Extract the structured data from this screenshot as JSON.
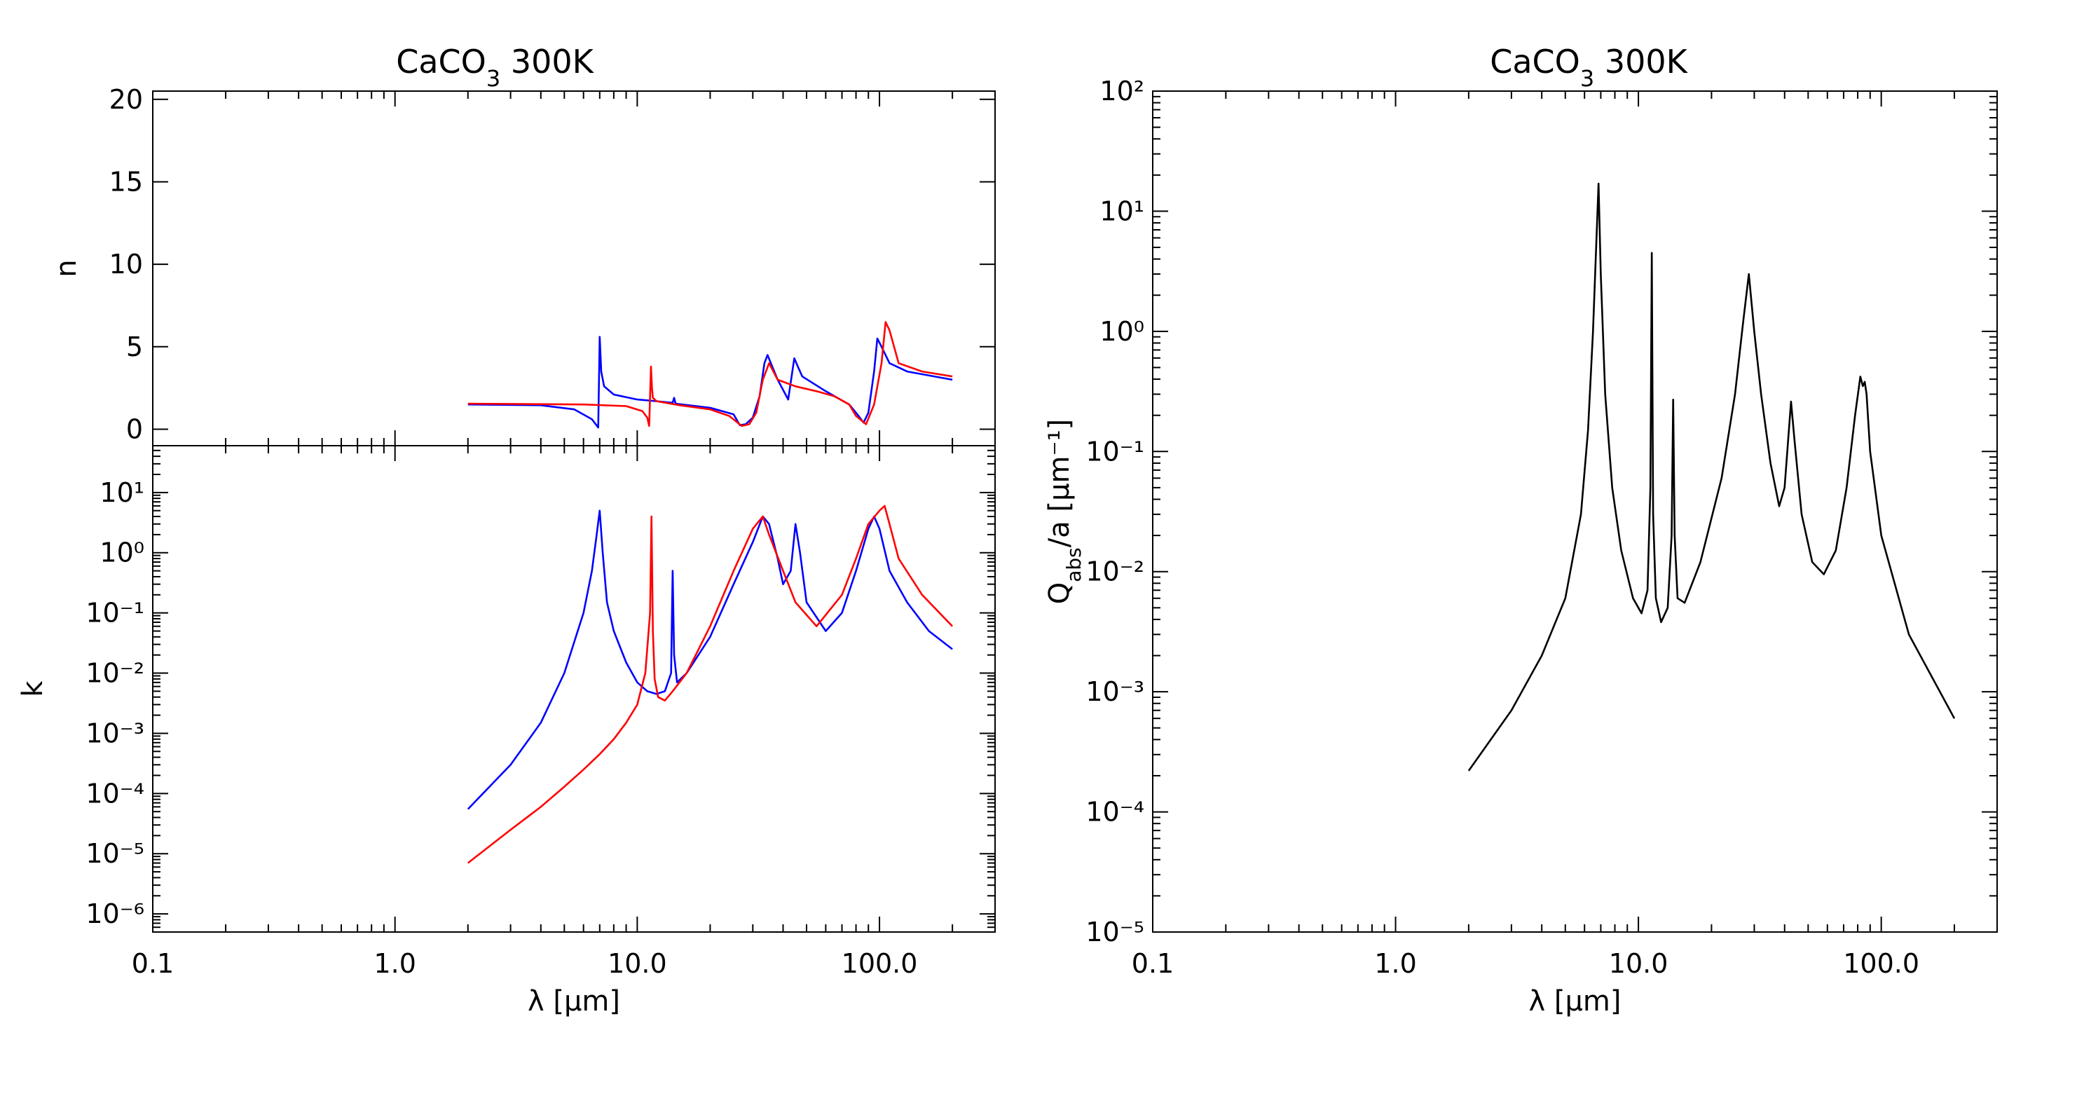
{
  "figure": {
    "left_title": "CaCO",
    "left_title_sub": "3",
    "left_title_rest": " 300K",
    "right_title": "CaCO",
    "right_title_sub": "3",
    "right_title_rest": " 300K"
  },
  "colors": {
    "series_a": "#0000ff",
    "series_b": "#ff0000",
    "series_c": "#000000",
    "axes": "#000000"
  },
  "chart_data": [
    {
      "type": "line",
      "title": "CaCO3 300K",
      "xlabel": "",
      "ylabel": "n",
      "xscale": "log",
      "xlim": [
        0.1,
        300
      ],
      "ylim": [
        -1,
        20.5
      ],
      "xtick_labels": [],
      "ytick_values": [
        0,
        5,
        10,
        15,
        20
      ],
      "ytick_labels": [
        "0",
        "5",
        "10",
        "15",
        "20"
      ],
      "series": [
        {
          "color": "#0000ff",
          "x": [
            2.0,
            4.0,
            5.5,
            6.5,
            6.9,
            7.0,
            7.1,
            7.3,
            8.0,
            10.0,
            11.0,
            12.0,
            14.0,
            14.2,
            14.4,
            20.0,
            25.0,
            26.5,
            28.0,
            30.0,
            32.0,
            33.5,
            34.5,
            38.0,
            42.0,
            44.5,
            46.0,
            48.0,
            60.0,
            75.0,
            82.0,
            86.0,
            90.0,
            95.0,
            98.0,
            102.0,
            110.0,
            130.0,
            200.0
          ],
          "y": [
            1.5,
            1.45,
            1.2,
            0.6,
            0.1,
            5.6,
            3.5,
            2.6,
            2.1,
            1.8,
            1.75,
            1.7,
            1.6,
            1.9,
            1.55,
            1.3,
            0.9,
            0.25,
            0.3,
            0.7,
            2.0,
            4.0,
            4.5,
            3.0,
            1.8,
            4.3,
            3.8,
            3.2,
            2.3,
            1.5,
            0.8,
            0.4,
            1.0,
            3.5,
            5.5,
            5.0,
            4.0,
            3.5,
            3.0
          ]
        },
        {
          "color": "#ff0000",
          "x": [
            2.0,
            6.0,
            9.0,
            10.5,
            11.0,
            11.2,
            11.4,
            11.5,
            11.6,
            12.0,
            15.0,
            20.0,
            24.0,
            27.0,
            29.0,
            31.0,
            33.0,
            35.0,
            38.0,
            45.0,
            55.0,
            65.0,
            75.0,
            80.0,
            88.0,
            95.0,
            102.0,
            106.0,
            110.0,
            120.0,
            150.0,
            200.0
          ],
          "y": [
            1.55,
            1.5,
            1.4,
            1.1,
            0.7,
            0.2,
            3.8,
            2.5,
            1.9,
            1.7,
            1.45,
            1.2,
            0.8,
            0.2,
            0.3,
            1.0,
            3.0,
            4.0,
            3.0,
            2.6,
            2.3,
            2.0,
            1.5,
            0.8,
            0.3,
            1.5,
            4.0,
            6.5,
            6.0,
            4.0,
            3.5,
            3.2
          ]
        }
      ]
    },
    {
      "type": "line",
      "title": "",
      "xlabel": "λ [μm]",
      "ylabel": "k",
      "xscale": "log",
      "yscale": "log",
      "xlim": [
        0.1,
        300
      ],
      "ylim": [
        5e-07,
        60
      ],
      "xtick_labels": [
        "0.1",
        "1.0",
        "10.0",
        "100.0"
      ],
      "ytick_exponents": [
        1,
        0,
        -1,
        -2,
        -3,
        -4,
        -5,
        -6
      ],
      "series": [
        {
          "color": "#0000ff",
          "x": [
            2.0,
            3.0,
            4.0,
            5.0,
            6.0,
            6.5,
            6.8,
            7.0,
            7.2,
            7.5,
            8.0,
            9.0,
            10.0,
            11.0,
            12.0,
            13.0,
            13.8,
            14.0,
            14.2,
            14.6,
            16.0,
            20.0,
            25.0,
            30.0,
            33.0,
            35.0,
            38.0,
            40.0,
            43.0,
            45.0,
            47.0,
            50.0,
            60.0,
            70.0,
            80.0,
            90.0,
            95.0,
            100.0,
            110.0,
            130.0,
            160.0,
            200.0
          ],
          "y": [
            5.5e-05,
            0.0003,
            0.0015,
            0.01,
            0.1,
            0.5,
            2.0,
            5.0,
            1.0,
            0.15,
            0.05,
            0.015,
            0.007,
            0.005,
            0.0045,
            0.005,
            0.01,
            0.5,
            0.02,
            0.007,
            0.01,
            0.04,
            0.3,
            1.5,
            4.0,
            3.0,
            0.8,
            0.3,
            0.5,
            3.0,
            1.0,
            0.15,
            0.05,
            0.1,
            0.5,
            2.5,
            4.0,
            2.5,
            0.5,
            0.15,
            0.05,
            0.025
          ]
        },
        {
          "color": "#ff0000",
          "x": [
            2.0,
            3.0,
            4.0,
            5.0,
            6.0,
            7.0,
            8.0,
            9.0,
            10.0,
            10.8,
            11.3,
            11.45,
            11.6,
            11.8,
            12.2,
            13.0,
            14.0,
            16.0,
            20.0,
            25.0,
            30.0,
            33.0,
            35.0,
            40.0,
            45.0,
            55.0,
            70.0,
            80.0,
            90.0,
            100.0,
            105.0,
            110.0,
            120.0,
            150.0,
            200.0
          ],
          "y": [
            7e-06,
            2.5e-05,
            6e-05,
            0.00013,
            0.00025,
            0.00045,
            0.0008,
            0.0015,
            0.003,
            0.01,
            0.1,
            4.0,
            0.05,
            0.008,
            0.004,
            0.0035,
            0.005,
            0.01,
            0.06,
            0.5,
            2.5,
            4.0,
            2.0,
            0.5,
            0.15,
            0.06,
            0.2,
            0.8,
            3.0,
            5.0,
            6.0,
            3.0,
            0.8,
            0.2,
            0.06
          ]
        }
      ]
    },
    {
      "type": "line",
      "title": "CaCO3 300K",
      "xlabel": "λ [μm]",
      "ylabel": "Q_abs/a [μm⁻¹]",
      "xscale": "log",
      "yscale": "log",
      "xlim": [
        0.1,
        300
      ],
      "ylim": [
        1e-05,
        100
      ],
      "xtick_labels": [
        "0.1",
        "1.0",
        "10.0",
        "100.0"
      ],
      "ytick_exponents": [
        2,
        1,
        0,
        -1,
        -2,
        -3,
        -4,
        -5
      ],
      "series": [
        {
          "color": "#000000",
          "x": [
            2.0,
            3.0,
            4.0,
            5.0,
            5.8,
            6.2,
            6.5,
            6.7,
            6.85,
            7.0,
            7.3,
            7.8,
            8.5,
            9.5,
            10.3,
            10.9,
            11.2,
            11.35,
            11.5,
            11.8,
            12.4,
            13.2,
            13.7,
            13.9,
            14.1,
            14.5,
            15.5,
            18.0,
            22.0,
            25.0,
            27.0,
            28.5,
            30.0,
            32.0,
            35.0,
            38.0,
            40.0,
            42.5,
            44.0,
            47.0,
            52.0,
            58.0,
            65.0,
            72.0,
            78.0,
            82.0,
            84.0,
            85.5,
            87.0,
            90.0,
            100.0,
            130.0,
            200.0
          ],
          "y": [
            0.00022,
            0.0007,
            0.002,
            0.006,
            0.03,
            0.15,
            1.0,
            5.0,
            17.0,
            3.0,
            0.3,
            0.05,
            0.015,
            0.006,
            0.0045,
            0.007,
            0.05,
            4.5,
            0.03,
            0.006,
            0.0038,
            0.005,
            0.02,
            0.27,
            0.02,
            0.006,
            0.0055,
            0.012,
            0.06,
            0.3,
            1.2,
            3.0,
            1.0,
            0.3,
            0.08,
            0.035,
            0.05,
            0.26,
            0.12,
            0.03,
            0.012,
            0.0095,
            0.015,
            0.05,
            0.2,
            0.42,
            0.35,
            0.38,
            0.3,
            0.1,
            0.02,
            0.003,
            0.0006
          ]
        }
      ]
    }
  ]
}
